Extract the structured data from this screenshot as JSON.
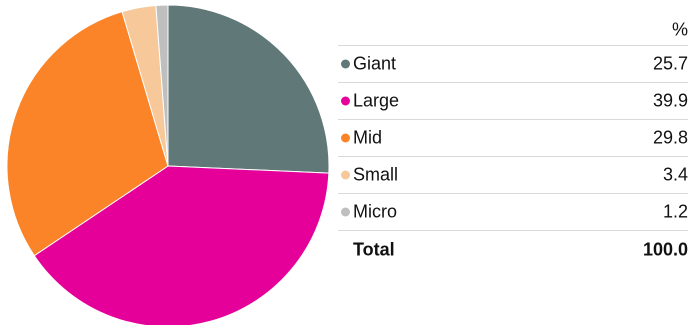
{
  "chart_data": {
    "type": "pie",
    "title": "",
    "unit_label": "%",
    "total_label": "Total",
    "total_value": "100.0",
    "series": [
      {
        "name": "Giant",
        "value": 25.7,
        "display": "25.7",
        "color": "#607878"
      },
      {
        "name": "Large",
        "value": 39.9,
        "display": "39.9",
        "color": "#e6009a"
      },
      {
        "name": "Mid",
        "value": 29.8,
        "display": "29.8",
        "color": "#fa8427"
      },
      {
        "name": "Small",
        "value": 3.4,
        "display": "3.4",
        "color": "#f6c89a"
      },
      {
        "name": "Micro",
        "value": 1.2,
        "display": "1.2",
        "color": "#bfbfbf"
      }
    ]
  }
}
